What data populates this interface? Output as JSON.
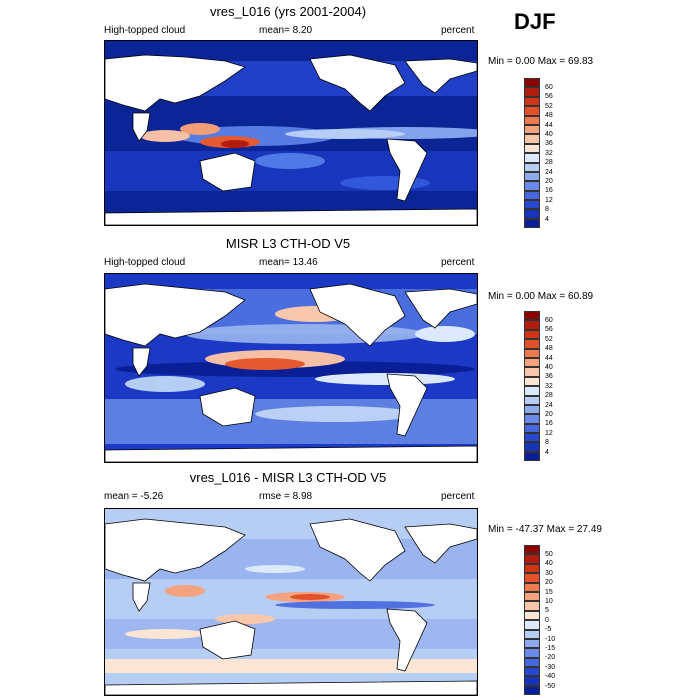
{
  "season": "DJF",
  "panels": [
    {
      "title": "vres_L016 (yrs 2001-2004)",
      "left_label": "High-topped cloud",
      "center_label": "mean=   8.20",
      "right_label": "percent",
      "minmax": "Min =   0.00 Max =   69.83",
      "colorbar": {
        "labels": [
          "60",
          "56",
          "52",
          "48",
          "44",
          "40",
          "36",
          "32",
          "28",
          "24",
          "20",
          "16",
          "12",
          "8",
          "4"
        ],
        "colors": [
          "#8b0000",
          "#b21c0e",
          "#d03316",
          "#e2512a",
          "#ee7a50",
          "#f5a37e",
          "#f9c8ac",
          "#fbe6d6",
          "#dce9fa",
          "#b6cdf4",
          "#8ea9ec",
          "#6a89e6",
          "#4667de",
          "#2747cf",
          "#1733b6",
          "#0a1f95"
        ]
      }
    },
    {
      "title": "MISR L3 CTH-OD V5",
      "left_label": "High-topped cloud",
      "center_label": "mean=  13.46",
      "right_label": "percent",
      "minmax": "Min =   0.00 Max =   60.89",
      "colorbar": {
        "labels": [
          "60",
          "56",
          "52",
          "48",
          "44",
          "40",
          "36",
          "32",
          "28",
          "24",
          "20",
          "16",
          "12",
          "8",
          "4"
        ],
        "colors": [
          "#8b0000",
          "#b21c0e",
          "#d03316",
          "#e2512a",
          "#ee7a50",
          "#f5a37e",
          "#f9c8ac",
          "#fbe6d6",
          "#dce9fa",
          "#b6cdf4",
          "#8ea9ec",
          "#6a89e6",
          "#4667de",
          "#2747cf",
          "#1733b6",
          "#0a1f95"
        ]
      }
    },
    {
      "title": "vres_L016 - MISR L3 CTH-OD V5",
      "left_label": "mean =  -5.26",
      "center_label": "rmse =   8.98",
      "right_label": "percent",
      "minmax": "Min = -47.37 Max =   27.49",
      "colorbar": {
        "labels": [
          "50",
          "40",
          "30",
          "20",
          "15",
          "10",
          "5",
          "0",
          "-5",
          "-10",
          "-15",
          "-20",
          "-30",
          "-40",
          "-50"
        ],
        "colors": [
          "#8b0000",
          "#b21c0e",
          "#d03316",
          "#e2512a",
          "#ee7a50",
          "#f5a37e",
          "#f9c8ac",
          "#fbe6d6",
          "#dce9fa",
          "#b6cdf4",
          "#8ea9ec",
          "#6a89e6",
          "#4667de",
          "#2747cf",
          "#1733b6",
          "#0a1f95"
        ]
      }
    }
  ]
}
